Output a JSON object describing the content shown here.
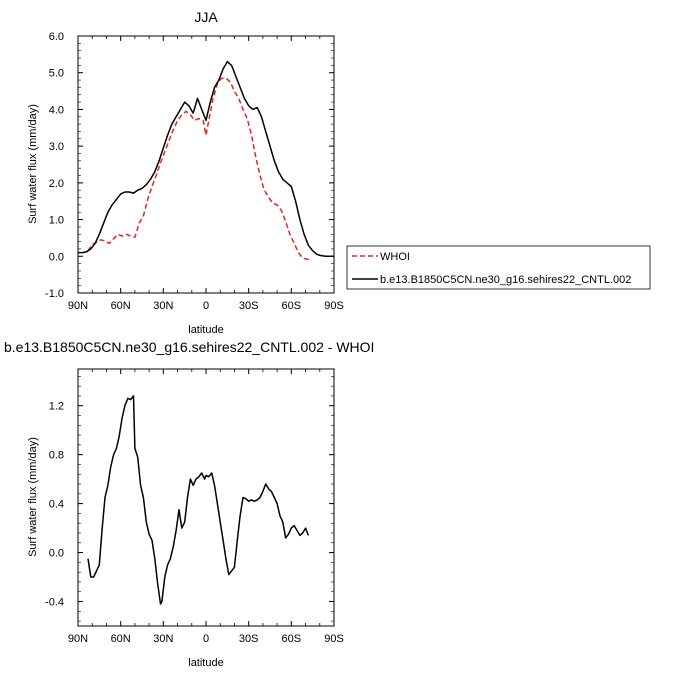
{
  "chart_data": [
    {
      "type": "line",
      "title": "JJA",
      "xlabel": "latitude",
      "ylabel": "Surf water flux (mm/day)",
      "xlim": [
        90,
        -90
      ],
      "ylim": [
        -1.0,
        6.0
      ],
      "xticks": [
        90,
        60,
        30,
        0,
        -30,
        -60,
        -90
      ],
      "xtick_labels": [
        "90N",
        "60N",
        "30N",
        "0",
        "30S",
        "60S",
        "90S"
      ],
      "yticks": [
        -1,
        0,
        1,
        2,
        3,
        4,
        5,
        6
      ],
      "ytick_labels": [
        "-1.0",
        "0.0",
        "1.0",
        "2.0",
        "3.0",
        "4.0",
        "5.0",
        "6.0"
      ],
      "grid": false,
      "legend": "right",
      "series": [
        {
          "name": "WHOI",
          "color": "#e8231f",
          "dash": "dashed",
          "x": [
            83,
            80,
            77,
            74,
            71,
            68,
            65,
            62,
            59,
            56,
            53,
            50,
            47,
            44,
            41,
            38,
            35,
            32,
            29,
            26,
            23,
            20,
            17,
            14,
            11,
            8,
            5,
            2,
            0,
            -2,
            -5,
            -8,
            -11,
            -14,
            -17,
            -20,
            -23,
            -26,
            -29,
            -32,
            -35,
            -38,
            -41,
            -44,
            -47,
            -50,
            -53,
            -56,
            -59,
            -62,
            -65,
            -68,
            -71,
            -74
          ],
          "y": [
            0.15,
            0.32,
            0.38,
            0.45,
            0.42,
            0.35,
            0.48,
            0.6,
            0.55,
            0.6,
            0.55,
            0.52,
            0.9,
            1.1,
            1.55,
            1.9,
            2.2,
            2.55,
            2.85,
            3.15,
            3.45,
            3.7,
            3.85,
            3.95,
            3.85,
            3.7,
            3.75,
            3.7,
            3.3,
            3.7,
            4.3,
            4.7,
            4.85,
            4.85,
            4.75,
            4.5,
            4.3,
            4.0,
            3.75,
            3.3,
            2.7,
            2.2,
            1.8,
            1.6,
            1.45,
            1.4,
            1.25,
            0.95,
            0.6,
            0.35,
            0.1,
            -0.05,
            -0.08,
            -0.08
          ]
        },
        {
          "name": "b.e13.B1850C5CN.ne30_g16.sehires22_CNTL.002",
          "color": "#000000",
          "dash": "solid",
          "x": [
            90,
            87,
            84,
            81,
            78,
            75,
            72,
            69,
            66,
            63,
            60,
            57,
            54,
            51,
            48,
            45,
            42,
            39,
            36,
            33,
            30,
            27,
            24,
            21,
            18,
            15,
            12,
            9,
            6,
            3,
            0,
            -3,
            -6,
            -9,
            -12,
            -15,
            -18,
            -21,
            -24,
            -27,
            -30,
            -33,
            -36,
            -39,
            -42,
            -45,
            -48,
            -51,
            -54,
            -57,
            -60,
            -63,
            -66,
            -69,
            -72,
            -75,
            -78,
            -81,
            -84,
            -87,
            -90
          ],
          "y": [
            0.1,
            0.1,
            0.12,
            0.2,
            0.35,
            0.6,
            0.9,
            1.2,
            1.4,
            1.55,
            1.7,
            1.75,
            1.75,
            1.72,
            1.8,
            1.85,
            1.95,
            2.1,
            2.3,
            2.6,
            2.95,
            3.3,
            3.6,
            3.8,
            4.0,
            4.2,
            4.1,
            3.9,
            4.3,
            4.0,
            3.7,
            4.2,
            4.6,
            4.8,
            5.1,
            5.3,
            5.2,
            4.9,
            4.6,
            4.3,
            4.1,
            4.0,
            4.05,
            3.8,
            3.4,
            3.0,
            2.6,
            2.3,
            2.1,
            2.0,
            1.9,
            1.5,
            1.0,
            0.6,
            0.3,
            0.15,
            0.05,
            0.02,
            0.0,
            0.0,
            0.0
          ]
        }
      ]
    },
    {
      "type": "line",
      "title": "b.e13.B1850C5CN.ne30_g16.sehires22_CNTL.002 - WHOI",
      "xlabel": "latitude",
      "ylabel": "Surf water flux (mm/day)",
      "xlim": [
        90,
        -90
      ],
      "ylim": [
        -0.6,
        1.5
      ],
      "xticks": [
        90,
        60,
        30,
        0,
        -30,
        -60,
        -90
      ],
      "xtick_labels": [
        "90N",
        "60N",
        "30N",
        "0",
        "30S",
        "60S",
        "90S"
      ],
      "yticks": [
        -0.4,
        0.0,
        0.4,
        0.8,
        1.2
      ],
      "ytick_labels": [
        "-0.4",
        "0.0",
        "0.4",
        "0.8",
        "1.2"
      ],
      "grid": false,
      "series": [
        {
          "color": "#000000",
          "dash": "solid",
          "x": [
            83,
            81,
            79,
            77,
            75,
            73,
            71,
            69,
            67,
            65,
            63,
            61,
            59,
            57,
            55,
            53,
            51,
            50,
            48,
            46,
            44,
            42,
            40,
            38,
            36,
            34,
            32,
            31,
            29,
            27,
            25,
            23,
            21,
            19,
            17,
            15,
            13,
            11,
            9,
            7,
            5,
            3,
            1,
            0,
            -2,
            -4,
            -6,
            -8,
            -10,
            -12,
            -14,
            -16,
            -18,
            -20,
            -22,
            -24,
            -26,
            -28,
            -30,
            -32,
            -34,
            -36,
            -38,
            -40,
            -42,
            -44,
            -46,
            -48,
            -50,
            -52,
            -54,
            -56,
            -58,
            -60,
            -62,
            -64,
            -66,
            -68,
            -70,
            -72
          ],
          "y": [
            -0.05,
            -0.2,
            -0.2,
            -0.15,
            -0.1,
            0.2,
            0.45,
            0.55,
            0.7,
            0.8,
            0.85,
            0.95,
            1.1,
            1.2,
            1.26,
            1.25,
            1.28,
            0.85,
            0.78,
            0.55,
            0.45,
            0.25,
            0.15,
            0.1,
            -0.05,
            -0.25,
            -0.42,
            -0.4,
            -0.2,
            -0.1,
            -0.05,
            0.05,
            0.18,
            0.35,
            0.2,
            0.25,
            0.45,
            0.6,
            0.55,
            0.6,
            0.62,
            0.65,
            0.6,
            0.63,
            0.62,
            0.65,
            0.55,
            0.4,
            0.25,
            0.1,
            -0.05,
            -0.18,
            -0.15,
            -0.12,
            0.1,
            0.3,
            0.45,
            0.44,
            0.42,
            0.43,
            0.42,
            0.43,
            0.45,
            0.5,
            0.56,
            0.52,
            0.5,
            0.45,
            0.4,
            0.3,
            0.25,
            0.12,
            0.15,
            0.2,
            0.22,
            0.18,
            0.14,
            0.16,
            0.2,
            0.14
          ]
        }
      ]
    }
  ]
}
